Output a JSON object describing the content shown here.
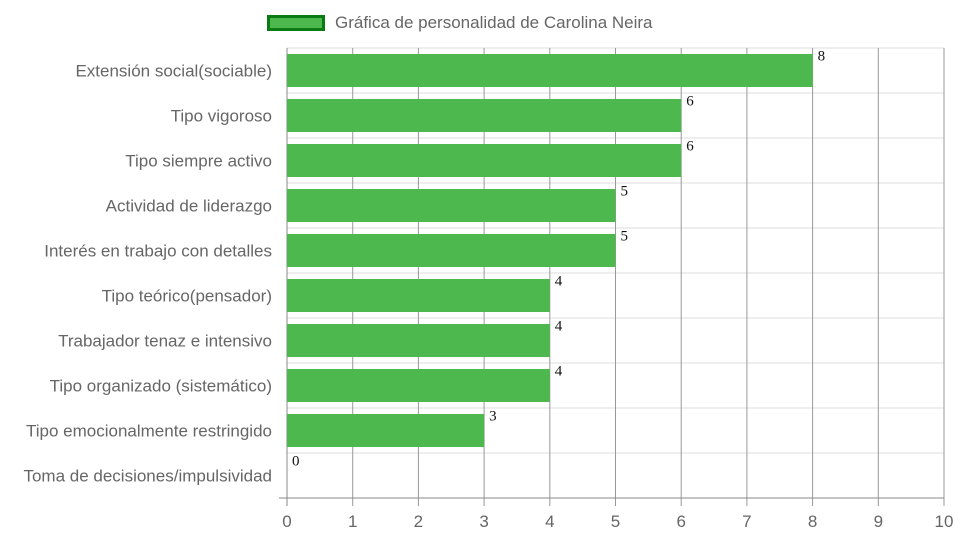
{
  "chart_data": {
    "type": "bar",
    "orientation": "horizontal",
    "categories": [
      "Extensión social(sociable)",
      "Tipo vigoroso",
      "Tipo siempre activo",
      "Actividad de liderazgo",
      "Interés en trabajo con detalles",
      "Tipo teórico(pensador)",
      "Trabajador tenaz e intensivo",
      "Tipo organizado (sistemático)",
      "Tipo emocionalmente restringido",
      "Toma de decisiones/impulsividad"
    ],
    "series": [
      {
        "name": "Gráfica de personalidad de Carolina Neira",
        "values": [
          8,
          6,
          6,
          5,
          5,
          4,
          4,
          4,
          3,
          0
        ]
      }
    ],
    "xlim": [
      0,
      10
    ],
    "xticks": [
      0,
      1,
      2,
      3,
      4,
      5,
      6,
      7,
      8,
      9,
      10
    ],
    "grid": true,
    "legend_position": "top",
    "colors": {
      "bar": "#4db84e",
      "legend_border": "#0a7a12",
      "grid": "#dddddd",
      "vgrid": "#999999"
    }
  }
}
